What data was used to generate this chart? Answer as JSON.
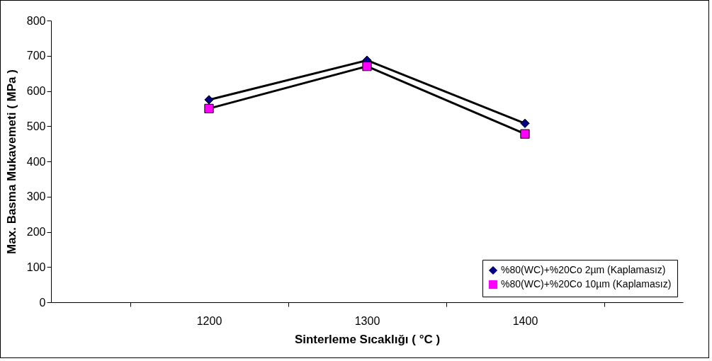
{
  "chart_data": {
    "type": "line",
    "xlabel": "Sinterleme Sıcaklığı ( °C )",
    "ylabel": "Max. Basma Mukavemeti ( MPa )",
    "categories": [
      "1200",
      "1300",
      "1400"
    ],
    "series": [
      {
        "name": "%80(WC)+%20Co 2µm (Kaplamasız)",
        "color": "#000080",
        "marker": "diamond",
        "values": [
          575,
          687,
          508
        ]
      },
      {
        "name": "%80(WC)+%20Co 10µm (Kaplamasız)",
        "color": "#ff00ff",
        "marker": "square",
        "values": [
          550,
          670,
          478
        ]
      }
    ],
    "ylim": [
      0,
      800
    ],
    "yticks": [
      0,
      100,
      200,
      300,
      400,
      500,
      600,
      700,
      800
    ],
    "grid": false,
    "legend": "bottom right",
    "line_style": "solid"
  }
}
